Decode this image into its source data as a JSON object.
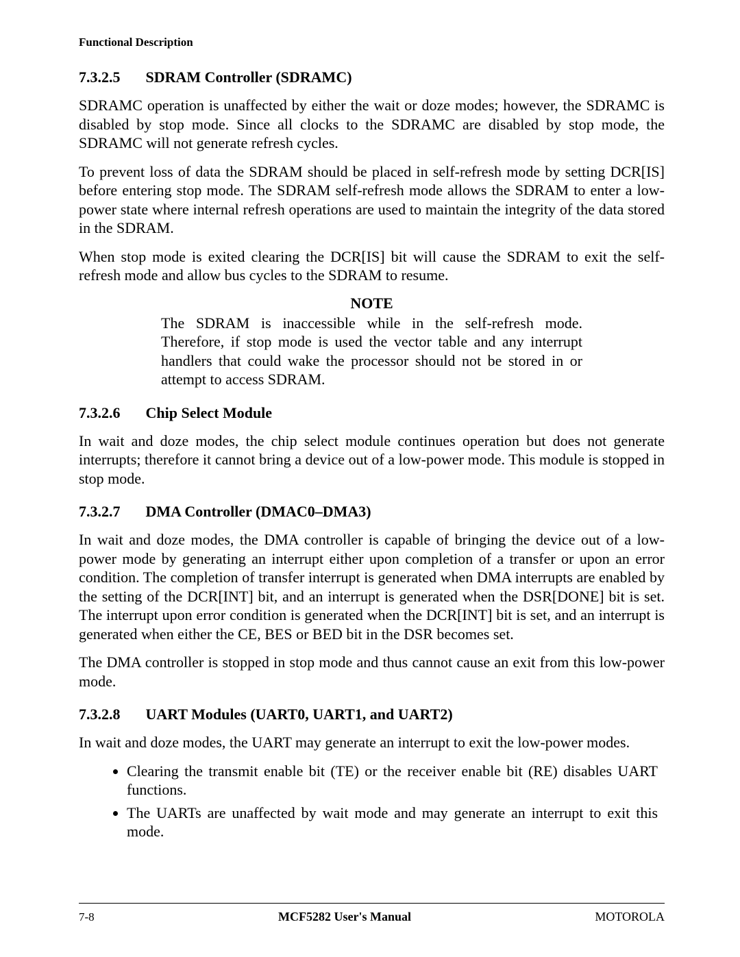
{
  "header": {
    "label": "Functional Description"
  },
  "sections": {
    "s1": {
      "number": "7.3.2.5",
      "title": "SDRAM Controller (SDRAMC)",
      "p1": "SDRAMC operation is unaffected by either the wait or doze modes; however, the SDRAMC is disabled by stop mode. Since all clocks to the SDRAMC are disabled by stop mode, the SDRAMC will not generate refresh cycles.",
      "p2": "To prevent loss of data the SDRAM should be placed in self-refresh mode by setting DCR[IS] before entering stop mode. The SDRAM self-refresh mode allows the SDRAM to enter a low-power state where internal refresh operations are used to maintain the integrity of the data stored in the SDRAM.",
      "p3": "When stop mode is exited clearing the DCR[IS] bit will cause the SDRAM to exit the self-refresh mode and allow bus cycles to the SDRAM to resume.",
      "note_title": "NOTE",
      "note_body": "The SDRAM is inaccessible while in the self-refresh mode. Therefore, if stop mode is used the vector table and any interrupt handlers that could wake the processor should not be stored in or attempt to access SDRAM."
    },
    "s2": {
      "number": "7.3.2.6",
      "title": "Chip Select Module",
      "p1": "In wait and doze modes, the chip select module continues operation but does not generate interrupts; therefore it cannot bring a device out of a low-power mode. This module is stopped in stop mode."
    },
    "s3": {
      "number": "7.3.2.7",
      "title": "DMA Controller (DMAC0–DMA3)",
      "p1": "In wait and doze modes, the DMA controller is capable of bringing the device out of a low-power mode by generating an interrupt either upon completion of a transfer or upon an error condition. The completion of transfer interrupt is generated when DMA interrupts are enabled by the setting of the DCR[INT] bit, and an interrupt is generated when the DSR[DONE] bit is set. The interrupt upon error condition is generated when the DCR[INT] bit is set, and an interrupt is generated when either the CE, BES or BED bit in the DSR becomes set.",
      "p2": "The DMA controller is stopped in stop mode and thus cannot cause an exit from this low-power mode."
    },
    "s4": {
      "number": "7.3.2.8",
      "title": "UART Modules (UART0, UART1, and UART2)",
      "p1": "In wait and doze modes, the UART may generate an interrupt to exit the low-power modes.",
      "bullets": [
        "Clearing the transmit enable bit (TE) or the receiver enable bit (RE) disables UART functions.",
        "The UARTs are unaffected by wait mode and may generate an interrupt to exit this mode."
      ]
    }
  },
  "footer": {
    "left": "7-8",
    "center": "MCF5282 User's Manual",
    "right": "MOTOROLA"
  }
}
